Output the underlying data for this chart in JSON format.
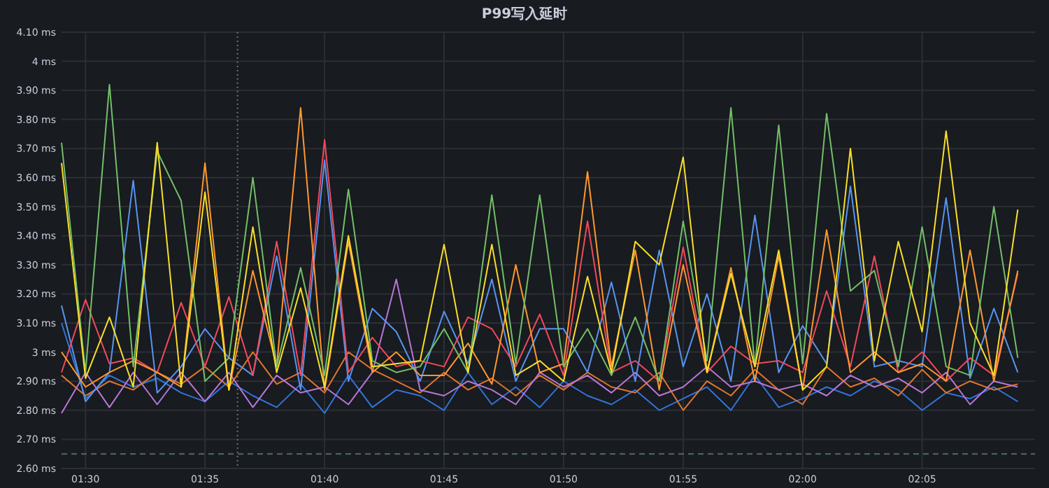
{
  "chart_data": {
    "type": "line",
    "title": "P99写入延时",
    "x": [
      1.4833,
      1.5,
      1.5167,
      1.5333,
      1.55,
      1.5667,
      1.5833,
      1.6,
      1.6167,
      1.6333,
      1.65,
      1.6667,
      1.6833,
      1.7,
      1.7167,
      1.7333,
      1.75,
      1.7667,
      1.7833,
      1.8,
      1.8167,
      1.8333,
      1.85,
      1.8667,
      1.8833,
      1.9,
      1.9167,
      1.9333,
      1.95,
      1.9667,
      1.9833,
      2.0,
      2.0167,
      2.0333,
      2.05,
      2.0667,
      2.0833,
      2.1,
      2.1167,
      2.1333,
      2.15
    ],
    "xlim": [
      1.4833,
      2.162
    ],
    "xticks": [
      {
        "value": 1.5,
        "label": "01:30"
      },
      {
        "value": 1.5833,
        "label": "01:35"
      },
      {
        "value": 1.6667,
        "label": "01:40"
      },
      {
        "value": 1.75,
        "label": "01:45"
      },
      {
        "value": 1.8333,
        "label": "01:50"
      },
      {
        "value": 1.9167,
        "label": "01:55"
      },
      {
        "value": 2.0,
        "label": "02:00"
      },
      {
        "value": 2.0833,
        "label": "02:05"
      }
    ],
    "ylim": [
      2.6,
      4.1
    ],
    "yticks": [
      {
        "value": 2.6,
        "label": "2.60 ms"
      },
      {
        "value": 2.7,
        "label": "2.70 ms"
      },
      {
        "value": 2.8,
        "label": "2.80 ms"
      },
      {
        "value": 2.9,
        "label": "2.90 ms"
      },
      {
        "value": 3.0,
        "label": "3 ms"
      },
      {
        "value": 3.1,
        "label": "3.10 ms"
      },
      {
        "value": 3.2,
        "label": "3.20 ms"
      },
      {
        "value": 3.3,
        "label": "3.30 ms"
      },
      {
        "value": 3.4,
        "label": "3.40 ms"
      },
      {
        "value": 3.5,
        "label": "3.50 ms"
      },
      {
        "value": 3.6,
        "label": "3.60 ms"
      },
      {
        "value": 3.7,
        "label": "3.70 ms"
      },
      {
        "value": 3.8,
        "label": "3.80 ms"
      },
      {
        "value": 3.9,
        "label": "3.90 ms"
      },
      {
        "value": 4.0,
        "label": "4 ms"
      },
      {
        "value": 4.1,
        "label": "4.10 ms"
      }
    ],
    "grid": true,
    "marker": "none",
    "line_style": "solid",
    "ref_lines": [
      {
        "axis": "y",
        "value": 2.65,
        "color": "#4f6b6b",
        "line_style": "dashed"
      },
      {
        "axis": "x",
        "value": 1.606,
        "color": "#6e7076",
        "line_style": "dotted"
      }
    ],
    "series": [
      {
        "color": "#3274d9",
        "values": [
          3.1,
          2.84,
          2.92,
          2.88,
          2.91,
          2.86,
          2.83,
          2.9,
          2.85,
          2.81,
          2.89,
          2.79,
          2.92,
          2.81,
          2.87,
          2.85,
          2.8,
          2.93,
          2.82,
          2.88,
          2.81,
          2.9,
          2.85,
          2.82,
          2.87,
          2.8,
          2.84,
          2.88,
          2.8,
          2.92,
          2.81,
          2.84,
          2.88,
          2.85,
          2.9,
          2.87,
          2.8,
          2.86,
          2.84,
          2.88,
          2.83
        ]
      },
      {
        "color": "#e0752d",
        "values": [
          2.92,
          2.85,
          2.9,
          2.87,
          2.93,
          2.89,
          2.95,
          2.88,
          3.0,
          2.89,
          2.93,
          2.86,
          3.0,
          2.94,
          2.9,
          2.86,
          2.93,
          2.87,
          2.91,
          2.85,
          2.92,
          2.87,
          2.93,
          2.88,
          2.86,
          2.93,
          2.8,
          2.9,
          2.85,
          2.94,
          2.87,
          2.82,
          2.95,
          2.88,
          2.91,
          2.85,
          2.94,
          2.86,
          2.9,
          2.87,
          2.89
        ]
      },
      {
        "color": "#b877d9",
        "values": [
          2.79,
          2.93,
          2.81,
          2.93,
          2.82,
          2.93,
          2.83,
          2.93,
          2.81,
          2.92,
          2.86,
          2.88,
          2.82,
          2.93,
          3.25,
          2.87,
          2.85,
          2.9,
          2.87,
          2.82,
          2.93,
          2.88,
          2.92,
          2.86,
          2.93,
          2.85,
          2.88,
          2.95,
          2.88,
          2.9,
          2.87,
          2.89,
          2.85,
          2.92,
          2.88,
          2.91,
          2.86,
          2.93,
          2.82,
          2.9,
          2.88
        ]
      },
      {
        "color": "#5794f2",
        "values": [
          3.16,
          2.83,
          2.93,
          3.59,
          2.86,
          2.95,
          3.08,
          2.98,
          2.92,
          3.33,
          2.87,
          3.66,
          2.9,
          3.15,
          3.07,
          2.9,
          3.14,
          2.96,
          3.25,
          2.9,
          3.08,
          3.08,
          2.93,
          3.24,
          2.9,
          3.35,
          2.95,
          3.2,
          2.9,
          3.47,
          2.93,
          3.09,
          2.96,
          3.57,
          2.95,
          2.97,
          2.95,
          3.53,
          2.91,
          3.15,
          2.93
        ]
      },
      {
        "color": "#f2495c",
        "values": [
          2.93,
          3.18,
          2.96,
          2.98,
          2.93,
          3.17,
          2.95,
          3.19,
          2.92,
          3.38,
          2.92,
          3.73,
          2.93,
          3.05,
          2.95,
          2.97,
          2.95,
          3.12,
          3.08,
          2.95,
          3.13,
          2.92,
          3.45,
          2.93,
          2.97,
          2.9,
          3.36,
          2.93,
          3.02,
          2.96,
          2.97,
          2.93,
          3.21,
          2.95,
          3.33,
          2.93,
          3.0,
          2.9,
          2.98,
          2.92,
          3.27
        ]
      },
      {
        "color": "#ff9830",
        "values": [
          3.0,
          2.88,
          2.93,
          2.97,
          2.93,
          2.88,
          3.65,
          2.87,
          3.28,
          2.95,
          3.84,
          2.87,
          3.38,
          2.93,
          3.0,
          2.92,
          2.92,
          3.03,
          2.89,
          3.3,
          2.93,
          2.96,
          3.62,
          2.95,
          3.35,
          2.87,
          3.3,
          2.93,
          3.29,
          2.9,
          3.33,
          2.87,
          3.42,
          2.93,
          3.0,
          2.93,
          2.96,
          2.9,
          3.35,
          2.9,
          3.28
        ]
      },
      {
        "color": "#73bf69",
        "values": [
          3.72,
          2.93,
          3.92,
          2.95,
          3.69,
          3.52,
          2.9,
          2.98,
          3.6,
          2.95,
          3.29,
          2.92,
          3.56,
          2.97,
          2.93,
          2.95,
          3.08,
          2.93,
          3.54,
          2.96,
          3.54,
          2.95,
          3.08,
          2.92,
          3.12,
          2.9,
          3.45,
          2.97,
          3.84,
          2.95,
          3.78,
          2.96,
          3.82,
          3.21,
          3.28,
          2.95,
          3.43,
          2.95,
          2.92,
          3.5,
          2.98
        ]
      },
      {
        "color": "#fade2a",
        "values": [
          3.65,
          2.91,
          3.12,
          2.88,
          3.72,
          2.88,
          3.55,
          2.87,
          3.43,
          2.93,
          3.22,
          2.88,
          3.4,
          2.95,
          2.96,
          2.97,
          3.37,
          2.93,
          3.37,
          2.92,
          2.97,
          2.9,
          3.26,
          2.93,
          3.38,
          3.3,
          3.67,
          2.93,
          3.27,
          2.95,
          3.35,
          2.87,
          2.95,
          3.7,
          2.97,
          3.38,
          3.07,
          3.76,
          3.1,
          2.92,
          3.49
        ]
      }
    ]
  }
}
